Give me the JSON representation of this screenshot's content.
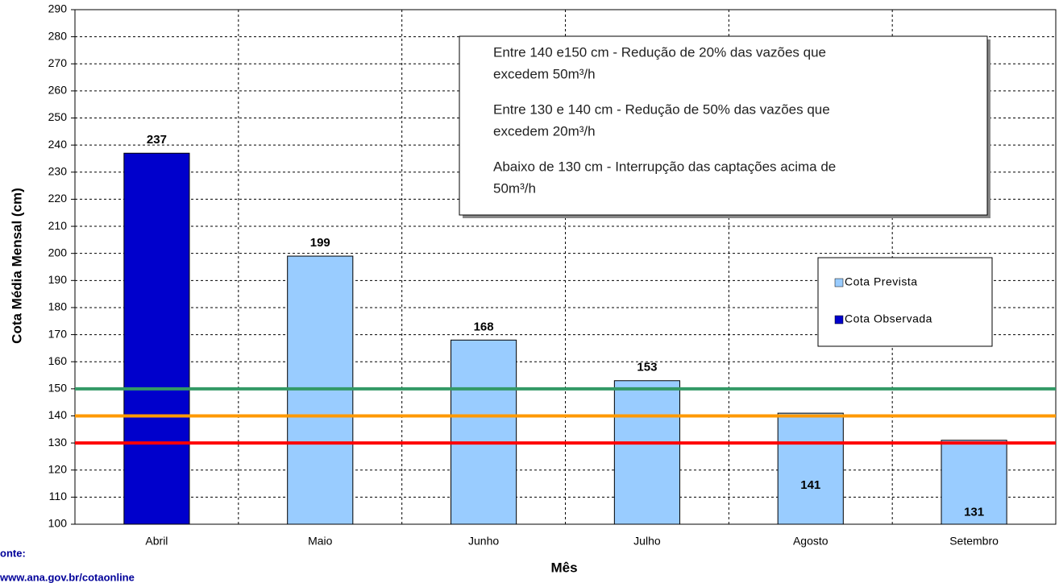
{
  "chart_data": {
    "type": "bar",
    "categories": [
      "Abril",
      "Maio",
      "Junho",
      "Julho",
      "Agosto",
      "Setembro"
    ],
    "series": [
      {
        "name": "Cota Prevista",
        "color": "#99ccff",
        "values": [
          null,
          199,
          168,
          153,
          141,
          131
        ]
      },
      {
        "name": "Cota Observada",
        "color": "#0000cc",
        "values": [
          237,
          null,
          null,
          null,
          null,
          null
        ]
      }
    ],
    "ylim": [
      100,
      290
    ],
    "yticks": [
      100,
      110,
      120,
      130,
      140,
      150,
      160,
      170,
      180,
      190,
      200,
      210,
      220,
      230,
      240,
      250,
      260,
      270,
      280,
      290
    ],
    "grid": true,
    "y_label": "Cota Média Mensal (cm)",
    "x_label": "Mês",
    "reference_lines": [
      {
        "value": 150,
        "color": "#339966"
      },
      {
        "value": 140,
        "color": "#ff9900"
      },
      {
        "value": 130,
        "color": "#ff0000"
      }
    ],
    "annotation": [
      [
        "Entre 140 e150 cm - Redução de 20% das vazões que",
        "excedem 50m³/h"
      ],
      [
        "Entre 130 e 140 cm - Redução de 50% das vazões que",
        "excedem 20m³/h"
      ],
      [
        "Abaixo de 130 cm - Interrupção das captações acima de",
        "50m³/h"
      ]
    ],
    "source": [
      "onte:",
      "www.ana.gov.br/cotaonline"
    ]
  }
}
